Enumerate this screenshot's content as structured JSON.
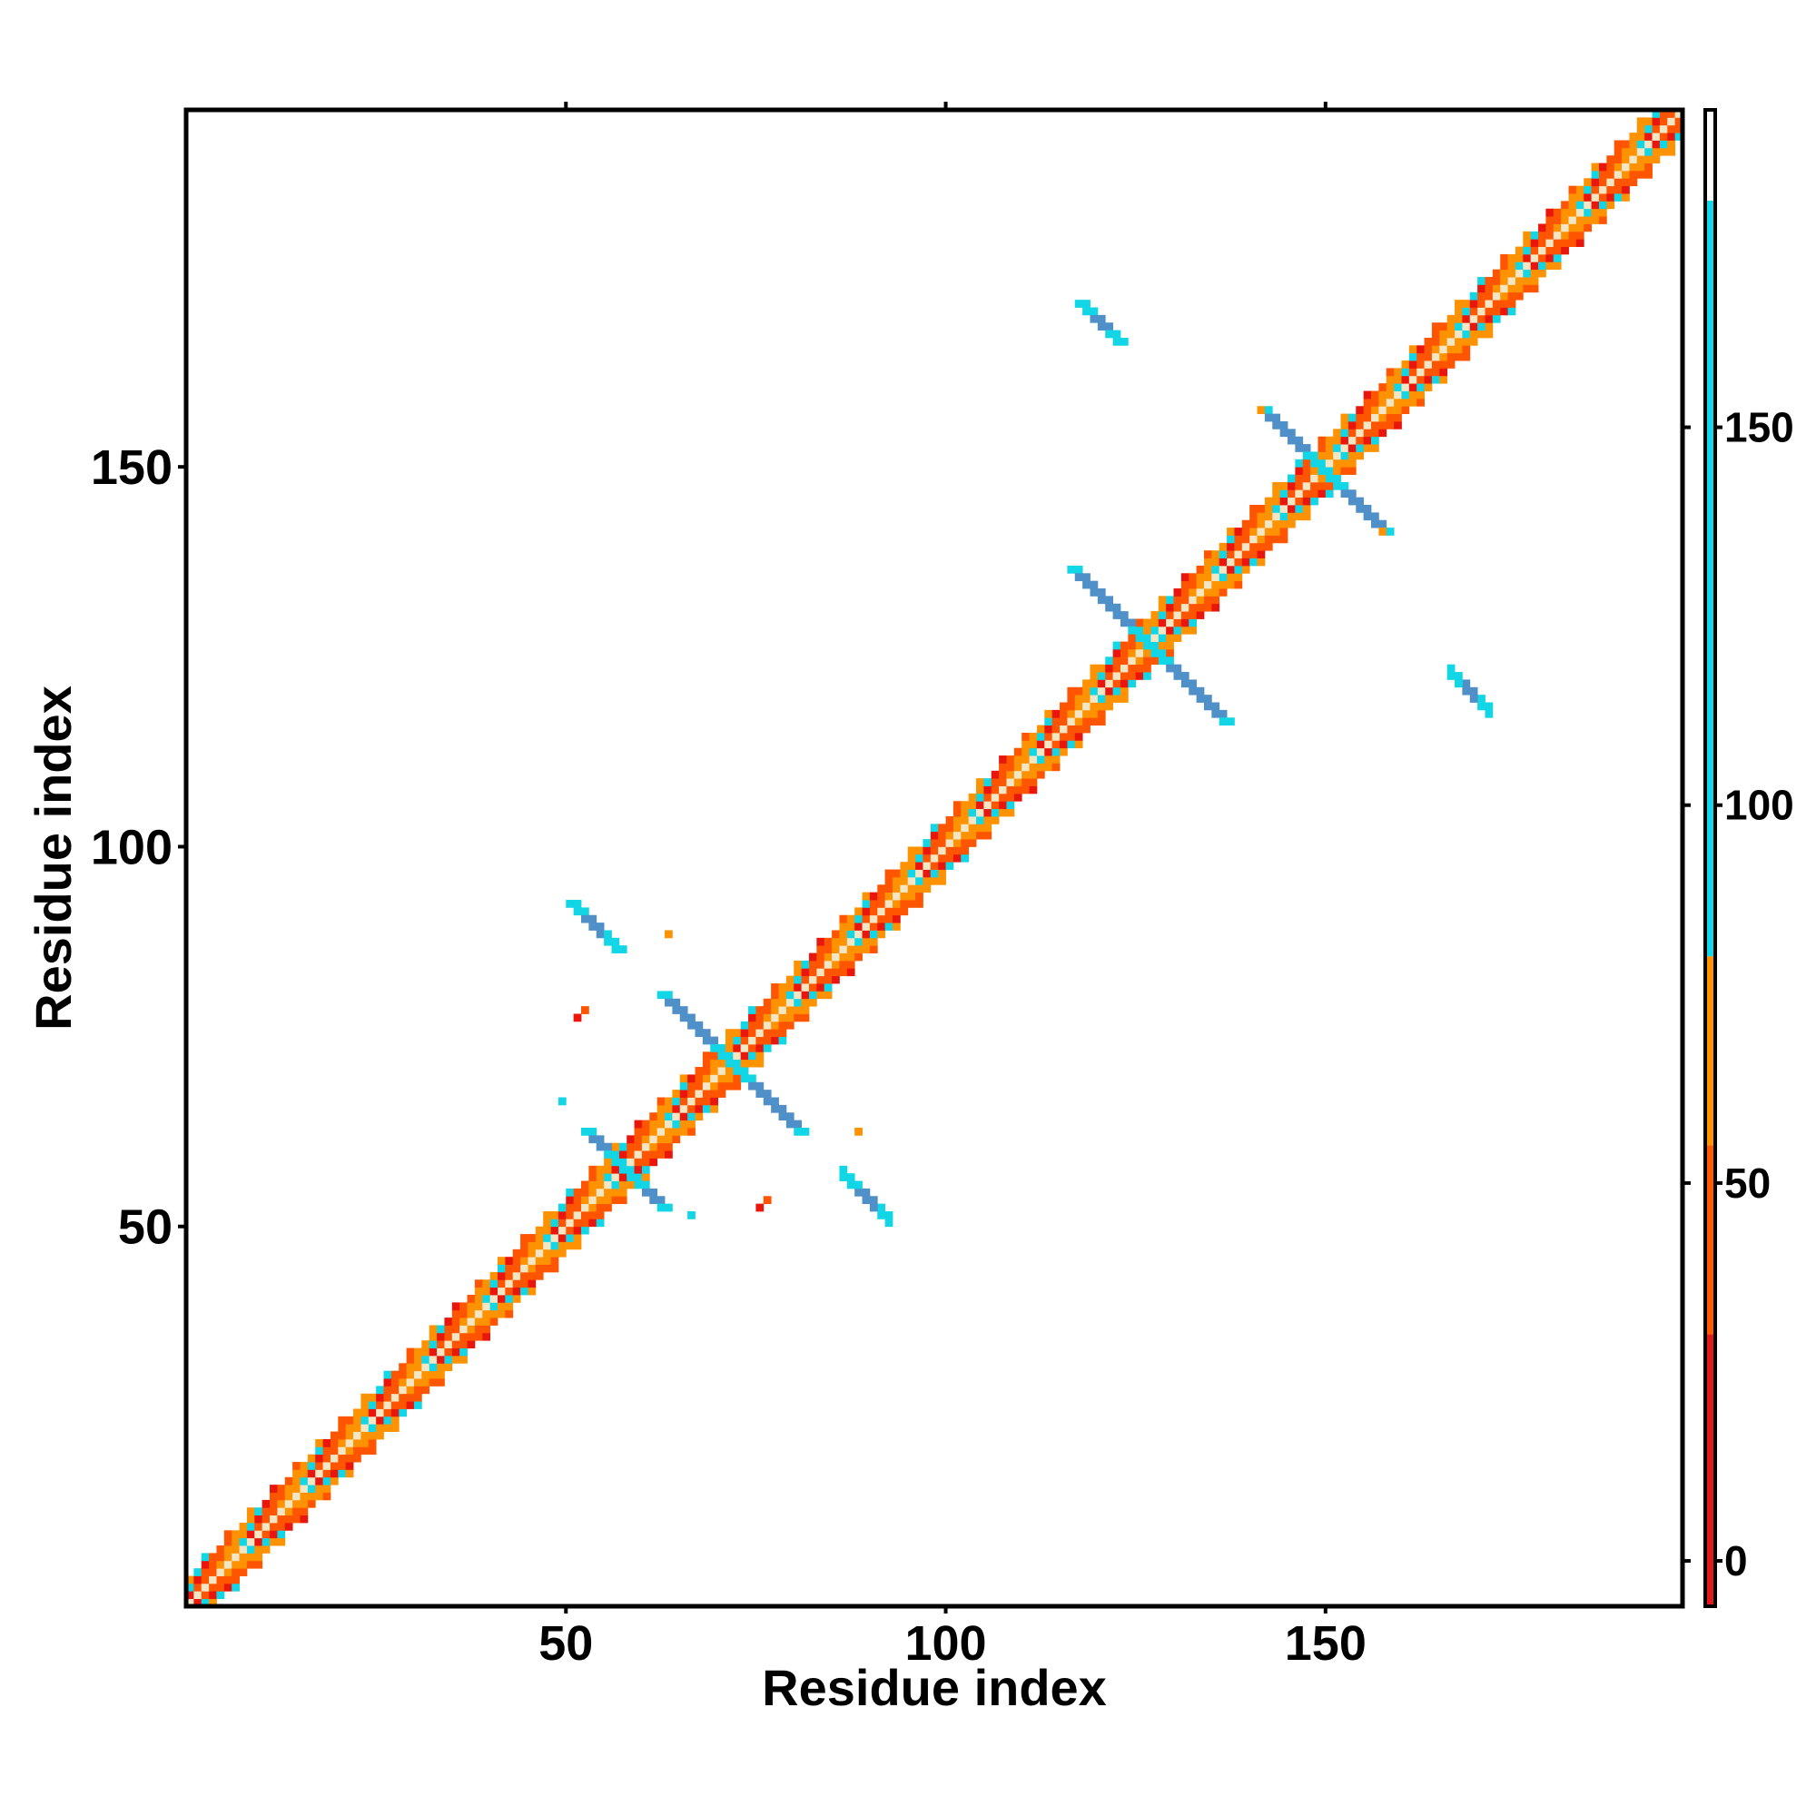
{
  "chart_data": {
    "type": "heatmap",
    "title": "",
    "xlabel": "Residue index",
    "ylabel": "Residue index",
    "xlim": [
      0,
      197
    ],
    "ylim": [
      0,
      197
    ],
    "x_ticks": [
      50,
      100,
      150
    ],
    "y_ticks": [
      50,
      100,
      150
    ],
    "grid": false,
    "legend": "right colorbar",
    "colorbar": {
      "range": [
        -6,
        192
      ],
      "ticks": [
        0,
        50,
        100,
        150
      ],
      "bands": [
        {
          "from": -6,
          "to": 30,
          "color": "#e31a1c"
        },
        {
          "from": 30,
          "to": 55,
          "color": "#ff5a00"
        },
        {
          "from": 55,
          "to": 80,
          "color": "#ff9400"
        },
        {
          "from": 80,
          "to": 180,
          "color": "#11d8e8"
        },
        {
          "from": 180,
          "to": 192,
          "color": "#ffffff"
        }
      ]
    },
    "colors": {
      "red": "#e8160c",
      "red_orange": "#ff5400",
      "orange": "#ff9200",
      "cyan": "#12d6e6",
      "steel_blue": "#4f90c8",
      "light": "#f3e6c4"
    },
    "features": [
      {
        "type": "diagonal_band",
        "from": 1,
        "to": 197,
        "pattern": "striped red-orange-cyan"
      },
      {
        "type": "antidiagonal_cross",
        "center": [
          72,
          72
        ],
        "half_length": 9
      },
      {
        "type": "antidiagonal_cross",
        "center": [
          127,
          127
        ],
        "half_length": 10
      },
      {
        "type": "antidiagonal_cross",
        "center": [
          150,
          150
        ],
        "half_length": 8
      },
      {
        "type": "antidiagonal_cross",
        "center": [
          58,
          58
        ],
        "half_length": 5
      },
      {
        "type": "antiparallel_segment",
        "from": [
          51,
          93
        ],
        "to": [
          57,
          87
        ]
      },
      {
        "type": "antiparallel_segment",
        "from": [
          87,
          57
        ],
        "to": [
          93,
          51
        ]
      },
      {
        "type": "antiparallel_segment",
        "from": [
          118,
          172
        ],
        "to": [
          123,
          166
        ]
      },
      {
        "type": "antiparallel_segment",
        "from": [
          166,
          123
        ],
        "to": [
          171,
          118
        ]
      }
    ]
  }
}
